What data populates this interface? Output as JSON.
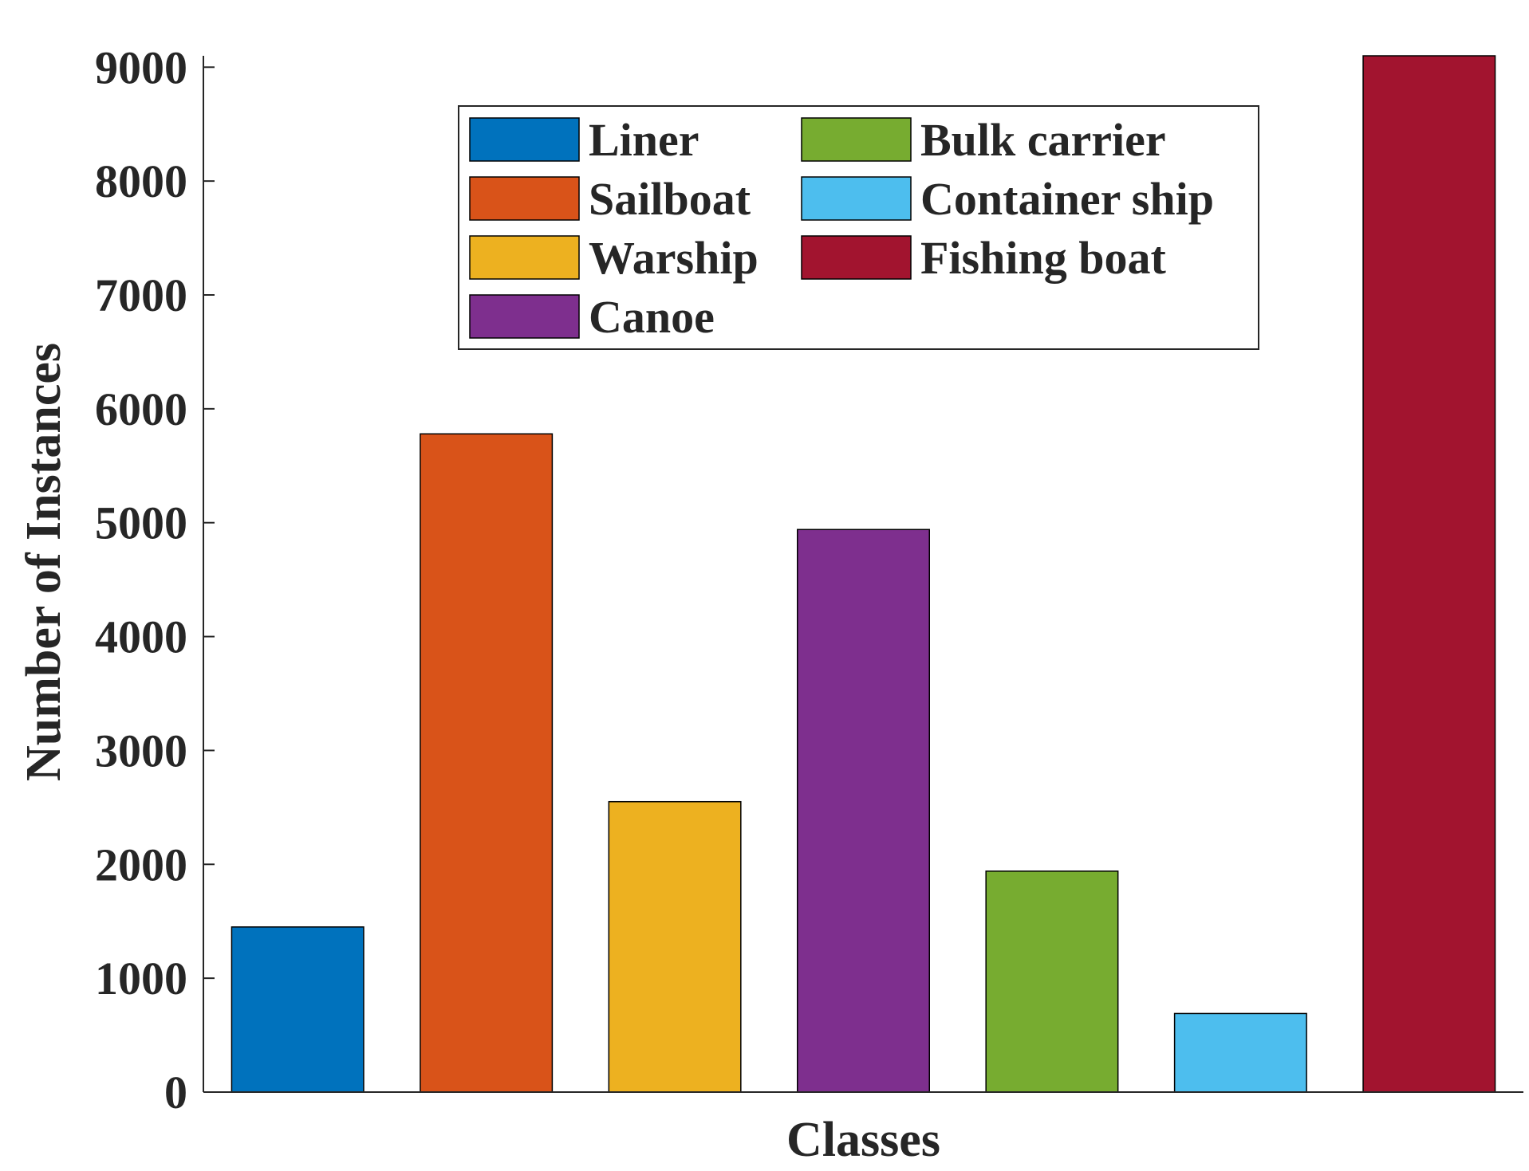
{
  "chart_data": {
    "type": "bar",
    "title": "",
    "xlabel": "Classes",
    "ylabel": "Number of Instances",
    "ylim": [
      0,
      9100
    ],
    "yticks": [
      "0",
      "1000",
      "2000",
      "3000",
      "4000",
      "5000",
      "6000",
      "7000",
      "8000",
      "9000"
    ],
    "grid": false,
    "legend_position": "top",
    "legend_columns": 2,
    "series": [
      {
        "name": "Liner",
        "value": 1450,
        "color": "#0072BD"
      },
      {
        "name": "Sailboat",
        "value": 5780,
        "color": "#D95319"
      },
      {
        "name": "Warship",
        "value": 2550,
        "color": "#EDB120"
      },
      {
        "name": "Canoe",
        "value": 4940,
        "color": "#7E2F8E"
      },
      {
        "name": "Bulk carrier",
        "value": 1940,
        "color": "#77AC30"
      },
      {
        "name": "Container ship",
        "value": 690,
        "color": "#4DBEEE"
      },
      {
        "name": "Fishing boat",
        "value": 9100,
        "color": "#A2142F"
      }
    ]
  }
}
